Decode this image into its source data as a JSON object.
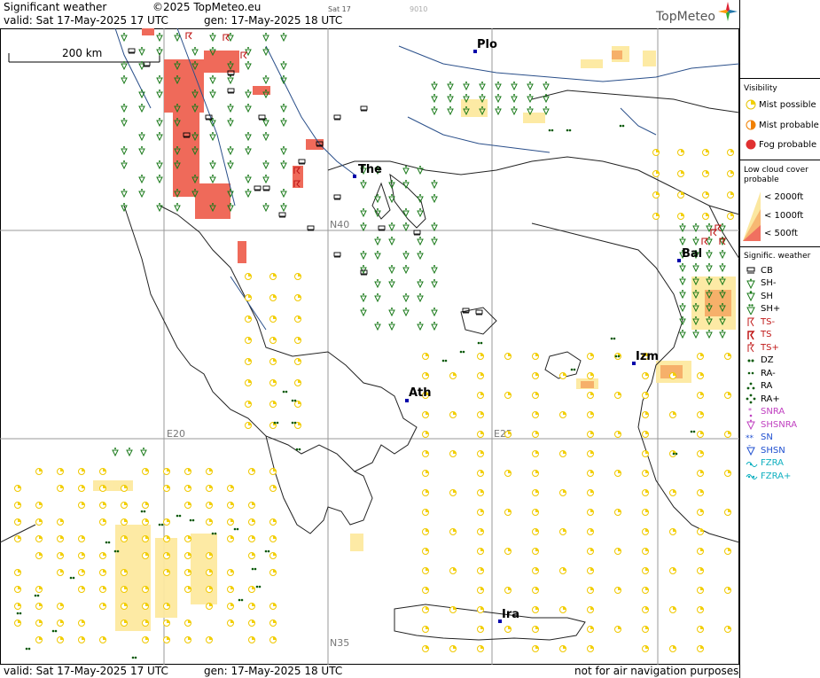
{
  "header": {
    "title": "Significant weather",
    "copyright": "©2025 TopMeteo.eu",
    "valid": "valid:  Sat  17-May-2025  17 UTC",
    "gen": "gen: 17-May-2025 18 UTC",
    "center_small": "Sat 17",
    "center_small2": "9010",
    "logo": "TopMeteo"
  },
  "footer": {
    "valid": "valid:  Sat  17-May-2025  17 UTC",
    "gen": "gen: 17-May-2025 18 UTC",
    "disclaimer": "not for air navigation purposes"
  },
  "map": {
    "scale_label": "200 km",
    "grid_labels": {
      "n40": "N40",
      "n35": "N35",
      "e20": "E20",
      "e25": "E25"
    },
    "cities": [
      {
        "name": "Plo"
      },
      {
        "name": "The"
      },
      {
        "name": "Bal"
      },
      {
        "name": "Izm"
      },
      {
        "name": "Ath"
      },
      {
        "name": "Ira"
      }
    ],
    "colors": {
      "fog": "#e8524a",
      "lowcloud": "#fbe38a",
      "lowcloud_dense": "#f5a55c",
      "showers": "#1a7a1a",
      "mist": "#f2d000",
      "drizzle": "#0a5a0a",
      "coast": "#222222",
      "rivers": "#2a4f8a",
      "grid": "#888888"
    }
  },
  "legend": {
    "visibility_title": "Visibility",
    "mist_possible": "Mist possible",
    "mist_probable": "Mist probable",
    "fog_probable": "Fog probable",
    "lowcloud_title": "Low cloud cover probable",
    "lc_2000": "< 2000ft",
    "lc_1000": "< 1000ft",
    "lc_500": "<   500ft",
    "signific_title": "Signific. weather",
    "items": [
      "CB",
      "SH-",
      "SH",
      "SH+",
      "TS-",
      "TS",
      "TS+",
      "DZ",
      "RA-",
      "RA",
      "RA+",
      "SNRA",
      "SHSNRA",
      "SN",
      "SHSN",
      "FZRA",
      "FZRA+"
    ]
  }
}
